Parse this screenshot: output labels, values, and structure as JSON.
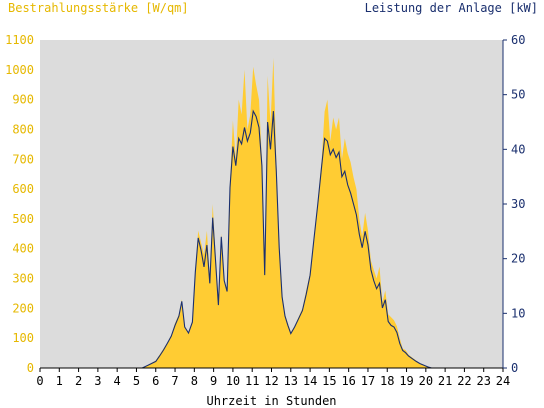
{
  "chart_data": {
    "type": "area",
    "left_axis_title": "Bestrahlungsstärke [W/qm]",
    "right_axis_title": "Leistung der Anlage [kW]",
    "xlabel": "Uhrzeit in Stunden",
    "xlim": [
      0,
      24
    ],
    "ylim_left": [
      0,
      1100
    ],
    "ylim_right": [
      0,
      60
    ],
    "x_ticks": [
      "0",
      "1",
      "2",
      "3",
      "4",
      "5",
      "6",
      "7",
      "8",
      "9",
      "10",
      "11",
      "12",
      "13",
      "14",
      "15",
      "16",
      "17",
      "18",
      "19",
      "20",
      "21",
      "22",
      "23",
      "24"
    ],
    "y_left_ticks": [
      "0",
      "100",
      "200",
      "300",
      "400",
      "500",
      "600",
      "700",
      "800",
      "900",
      "1000",
      "1100"
    ],
    "y_right_ticks": [
      "0",
      "10",
      "20",
      "30",
      "40",
      "50",
      "60"
    ],
    "grid": false,
    "colors": {
      "plot_bg": "#dcdcdc",
      "irradiance": "#ffcc33",
      "power_line": "#1a2f6e",
      "left_axis_text": "#e6b800",
      "right_axis_text": "#1a2f6e",
      "axis_text": "#000000"
    },
    "series": [
      {
        "name": "Bestrahlungsstärke [W/qm]",
        "axis": "left",
        "x": [
          0,
          5.3,
          5.6,
          6.0,
          6.2,
          6.4,
          6.6,
          6.8,
          7.0,
          7.2,
          7.35,
          7.5,
          7.7,
          7.9,
          8.05,
          8.2,
          8.35,
          8.5,
          8.65,
          8.8,
          8.95,
          9.1,
          9.25,
          9.4,
          9.55,
          9.7,
          9.85,
          10.0,
          10.15,
          10.3,
          10.45,
          10.6,
          10.75,
          10.9,
          11.05,
          11.2,
          11.35,
          11.5,
          11.65,
          11.8,
          11.95,
          12.1,
          12.25,
          12.4,
          12.55,
          12.7,
          12.85,
          13.0,
          13.2,
          13.4,
          13.6,
          13.8,
          14.0,
          14.2,
          14.4,
          14.6,
          14.75,
          14.9,
          15.05,
          15.2,
          15.35,
          15.5,
          15.65,
          15.8,
          15.95,
          16.1,
          16.25,
          16.4,
          16.55,
          16.7,
          16.85,
          17.0,
          17.15,
          17.3,
          17.45,
          17.6,
          17.75,
          17.9,
          18.05,
          18.2,
          18.35,
          18.5,
          18.65,
          18.8,
          18.95,
          19.1,
          19.3,
          19.5,
          19.7,
          19.9,
          20.1,
          20.3,
          20.5,
          24
        ],
        "values": [
          0,
          0,
          10,
          25,
          45,
          65,
          85,
          110,
          150,
          180,
          230,
          140,
          120,
          160,
          330,
          460,
          420,
          380,
          460,
          300,
          550,
          380,
          220,
          450,
          300,
          260,
          620,
          830,
          700,
          900,
          850,
          1000,
          800,
          850,
          1010,
          950,
          900,
          700,
          320,
          980,
          820,
          1040,
          700,
          400,
          250,
          180,
          150,
          120,
          140,
          170,
          200,
          260,
          320,
          440,
          560,
          700,
          860,
          900,
          760,
          840,
          800,
          840,
          700,
          770,
          720,
          690,
          640,
          600,
          500,
          440,
          520,
          460,
          360,
          330,
          300,
          340,
          220,
          260,
          180,
          170,
          160,
          140,
          100,
          65,
          60,
          45,
          35,
          25,
          15,
          10,
          5,
          0,
          0,
          0
        ]
      },
      {
        "name": "Leistung der Anlage [kW]",
        "axis": "right",
        "x": [
          0,
          5.3,
          5.6,
          6.0,
          6.2,
          6.4,
          6.6,
          6.8,
          7.0,
          7.2,
          7.35,
          7.5,
          7.7,
          7.9,
          8.05,
          8.2,
          8.35,
          8.5,
          8.65,
          8.8,
          8.95,
          9.1,
          9.25,
          9.4,
          9.55,
          9.7,
          9.85,
          10.0,
          10.15,
          10.3,
          10.45,
          10.6,
          10.75,
          10.9,
          11.05,
          11.2,
          11.35,
          11.5,
          11.65,
          11.8,
          11.95,
          12.1,
          12.25,
          12.4,
          12.55,
          12.7,
          12.85,
          13.0,
          13.2,
          13.4,
          13.6,
          13.8,
          14.0,
          14.2,
          14.4,
          14.6,
          14.75,
          14.9,
          15.05,
          15.2,
          15.35,
          15.5,
          15.65,
          15.8,
          15.95,
          16.1,
          16.25,
          16.4,
          16.55,
          16.7,
          16.85,
          17.0,
          17.15,
          17.3,
          17.45,
          17.6,
          17.75,
          17.9,
          18.05,
          18.2,
          18.35,
          18.5,
          18.65,
          18.8,
          18.95,
          19.1,
          19.3,
          19.5,
          19.7,
          19.9,
          20.1,
          20.3,
          20.5,
          24
        ],
        "values": [
          0,
          0,
          0.5,
          1.2,
          2.2,
          3.3,
          4.5,
          5.8,
          7.8,
          9.5,
          12.2,
          7.5,
          6.4,
          8.4,
          17.5,
          23.8,
          21.5,
          18.5,
          22.5,
          15.5,
          27.5,
          19.5,
          11.5,
          24,
          16,
          14,
          33,
          40.5,
          37,
          42,
          41,
          44,
          41.5,
          43,
          47,
          46,
          44,
          37,
          17,
          45,
          40,
          47,
          36,
          22,
          13,
          9.5,
          7.8,
          6.3,
          7.5,
          9,
          10.5,
          13.5,
          17,
          23.5,
          30,
          37,
          42,
          41.5,
          39,
          40,
          38.5,
          39.5,
          35,
          36,
          33.5,
          32,
          30,
          28,
          24.5,
          22,
          25,
          22.5,
          18,
          16,
          14.5,
          15.5,
          11,
          12.5,
          8.5,
          7.8,
          7.5,
          6.5,
          4.5,
          3.2,
          2.8,
          2.2,
          1.7,
          1.2,
          0.8,
          0.5,
          0.2,
          0,
          0,
          0
        ]
      }
    ]
  }
}
